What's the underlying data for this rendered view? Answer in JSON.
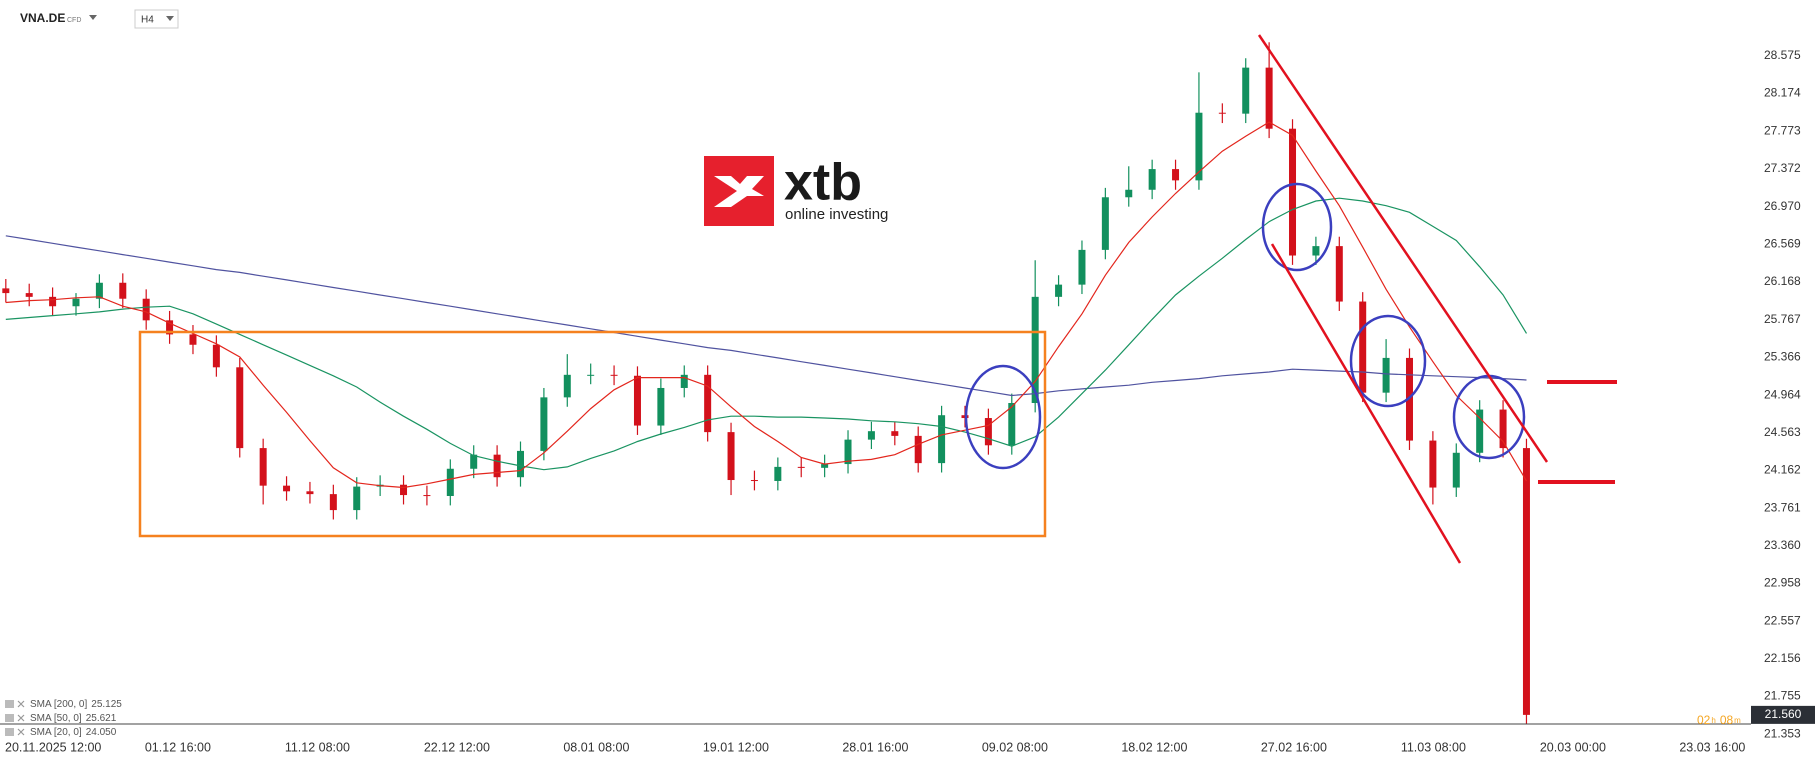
{
  "header": {
    "symbol": "VNA.DE",
    "instrument": "CFD",
    "timeframe": "H4"
  },
  "logo": {
    "brand": "xtb",
    "tagline": "online investing"
  },
  "chart_data": {
    "type": "candlestick",
    "x_labels": [
      "20.11.2025 12:00",
      "01.12 16:00",
      "11.12 08:00",
      "22.12 12:00",
      "08.01 08:00",
      "19.01 12:00",
      "28.01 16:00",
      "09.02 08:00",
      "18.02 12:00",
      "27.02 16:00",
      "11.03 08:00",
      "20.03 00:00",
      "23.03 16:00"
    ],
    "open": [
      26.1,
      26.05,
      26.01,
      25.91,
      25.99,
      26.16,
      25.99,
      25.76,
      25.61,
      25.5,
      25.26,
      24.4,
      24.0,
      23.94,
      23.91,
      23.74,
      23.99,
      24.01,
      23.9,
      23.89,
      24.18,
      24.33,
      24.09,
      24.37,
      24.94,
      25.18,
      25.18,
      25.17,
      24.64,
      25.04,
      25.18,
      24.57,
      24.06,
      24.05,
      24.2,
      24.19,
      24.23,
      24.49,
      24.58,
      24.53,
      24.24,
      24.75,
      24.72,
      24.43,
      24.88,
      26.01,
      26.14,
      26.51,
      27.07,
      27.15,
      27.37,
      27.25,
      27.97,
      27.96,
      28.45,
      27.8,
      26.45,
      26.55,
      25.96,
      24.99,
      25.36,
      24.48,
      23.98,
      24.35,
      24.81,
      24.4
    ],
    "high": [
      26.2,
      26.15,
      26.11,
      26.05,
      26.25,
      26.26,
      26.09,
      25.86,
      25.71,
      25.6,
      25.36,
      24.5,
      24.1,
      24.04,
      24.01,
      24.09,
      24.11,
      24.11,
      24.0,
      24.28,
      24.43,
      24.43,
      24.47,
      25.04,
      25.4,
      25.3,
      25.28,
      25.27,
      25.14,
      25.28,
      25.28,
      24.67,
      24.16,
      24.3,
      24.3,
      24.33,
      24.59,
      24.68,
      24.68,
      24.63,
      24.85,
      24.85,
      24.82,
      24.98,
      26.4,
      26.24,
      26.61,
      27.17,
      27.4,
      27.47,
      27.47,
      28.4,
      28.07,
      28.55,
      28.72,
      27.9,
      26.65,
      26.65,
      26.06,
      25.56,
      25.46,
      24.58,
      24.45,
      24.91,
      24.91,
      24.5
    ],
    "low": [
      25.95,
      25.91,
      25.81,
      25.81,
      25.89,
      25.89,
      25.66,
      25.51,
      25.4,
      25.16,
      24.3,
      23.8,
      23.84,
      23.81,
      23.64,
      23.64,
      23.89,
      23.8,
      23.79,
      23.79,
      24.08,
      23.99,
      23.99,
      24.27,
      24.84,
      25.08,
      25.07,
      24.54,
      24.54,
      24.94,
      24.47,
      23.9,
      23.95,
      23.95,
      24.09,
      24.09,
      24.13,
      24.39,
      24.43,
      24.14,
      24.14,
      24.62,
      24.33,
      24.33,
      24.78,
      25.91,
      26.04,
      26.41,
      26.97,
      27.05,
      27.15,
      27.15,
      27.86,
      27.86,
      27.7,
      26.35,
      26.35,
      25.86,
      24.89,
      24.89,
      24.38,
      23.8,
      23.88,
      24.25,
      24.3,
      21.46
    ],
    "close": [
      26.05,
      26.01,
      25.91,
      25.99,
      26.16,
      25.99,
      25.76,
      25.61,
      25.5,
      25.26,
      24.4,
      24.0,
      23.94,
      23.91,
      23.74,
      23.99,
      24.01,
      23.9,
      23.89,
      24.18,
      24.33,
      24.09,
      24.37,
      24.94,
      25.18,
      25.18,
      25.17,
      24.64,
      25.04,
      25.18,
      24.57,
      24.06,
      24.05,
      24.2,
      24.19,
      24.23,
      24.49,
      24.58,
      24.53,
      24.24,
      24.75,
      24.72,
      24.43,
      24.88,
      26.01,
      26.14,
      26.51,
      27.07,
      27.15,
      27.37,
      27.25,
      27.97,
      27.96,
      28.45,
      27.8,
      26.45,
      26.55,
      25.96,
      24.99,
      25.36,
      24.48,
      23.98,
      24.35,
      24.81,
      24.4,
      21.56
    ],
    "up_color": "#12905e",
    "down_color": "#d3111b",
    "series": [
      {
        "name": "SMA [200, 0]",
        "last_label": "25.125",
        "color": "#5053a0",
        "values": [
          26.66,
          26.62,
          26.58,
          26.54,
          26.5,
          26.46,
          26.42,
          26.38,
          26.34,
          26.3,
          26.27,
          26.23,
          26.19,
          26.15,
          26.11,
          26.07,
          26.03,
          25.99,
          25.95,
          25.91,
          25.87,
          25.83,
          25.79,
          25.75,
          25.71,
          25.67,
          25.63,
          25.59,
          25.55,
          25.51,
          25.47,
          25.44,
          25.4,
          25.36,
          25.32,
          25.28,
          25.24,
          25.2,
          25.16,
          25.12,
          25.08,
          25.04,
          25.0,
          24.96,
          24.98,
          25.01,
          25.03,
          25.05,
          25.07,
          25.1,
          25.12,
          25.14,
          25.17,
          25.19,
          25.21,
          25.24,
          25.23,
          25.22,
          25.21,
          25.19,
          25.18,
          25.17,
          25.16,
          25.15,
          25.14,
          25.125
        ]
      },
      {
        "name": "SMA [50, 0]",
        "last_label": "25.621",
        "color": "#1a9462",
        "values": [
          25.77,
          25.79,
          25.81,
          25.83,
          25.85,
          25.88,
          25.9,
          25.91,
          25.83,
          25.72,
          25.61,
          25.5,
          25.39,
          25.28,
          25.17,
          25.05,
          24.89,
          24.74,
          24.6,
          24.45,
          24.32,
          24.26,
          24.21,
          24.17,
          24.2,
          24.29,
          24.37,
          24.47,
          24.55,
          24.62,
          24.7,
          24.74,
          24.74,
          24.73,
          24.73,
          24.72,
          24.71,
          24.69,
          24.68,
          24.66,
          24.63,
          24.57,
          24.5,
          24.42,
          24.52,
          24.73,
          24.98,
          25.23,
          25.5,
          25.77,
          26.03,
          26.23,
          26.42,
          26.62,
          26.81,
          26.94,
          27.03,
          27.06,
          27.03,
          26.98,
          26.91,
          26.76,
          26.61,
          26.33,
          26.03,
          25.621
        ]
      },
      {
        "name": "SMA [20, 0]",
        "last_label": "24.050",
        "color": "#e3261d",
        "values": [
          25.95,
          25.97,
          25.98,
          26.0,
          26.01,
          25.91,
          25.85,
          25.73,
          25.62,
          25.51,
          25.37,
          25.07,
          24.78,
          24.48,
          24.19,
          24.03,
          24.0,
          23.98,
          24.02,
          24.07,
          24.12,
          24.14,
          24.16,
          24.35,
          24.58,
          24.82,
          25.02,
          25.15,
          25.15,
          25.15,
          25.06,
          24.84,
          24.63,
          24.47,
          24.3,
          24.23,
          24.26,
          24.28,
          24.33,
          24.44,
          24.54,
          24.59,
          24.64,
          24.84,
          25.11,
          25.48,
          25.83,
          26.24,
          26.59,
          26.86,
          27.11,
          27.34,
          27.56,
          27.72,
          27.87,
          27.73,
          27.35,
          26.98,
          26.54,
          26.09,
          25.69,
          25.32,
          24.96,
          24.72,
          24.47,
          24.05
        ]
      }
    ],
    "ylim": [
      21.25,
      29.17
    ],
    "yticks": [
      28.575,
      28.174,
      27.773,
      27.372,
      {
        "value": 26.97,
        "label": "26.970"
      },
      26.569,
      26.168,
      25.767,
      25.366,
      24.964,
      24.563,
      24.162,
      23.761,
      {
        "value": 23.36,
        "label": "23.360"
      },
      22.958,
      22.557,
      22.156,
      21.755,
      21.353
    ],
    "grid": false,
    "last_price": {
      "value": 21.56,
      "label": "21.560"
    },
    "countdown": {
      "hours": "02",
      "hours_unit": "h",
      "minutes": "08",
      "minutes_unit": "m"
    }
  }
}
